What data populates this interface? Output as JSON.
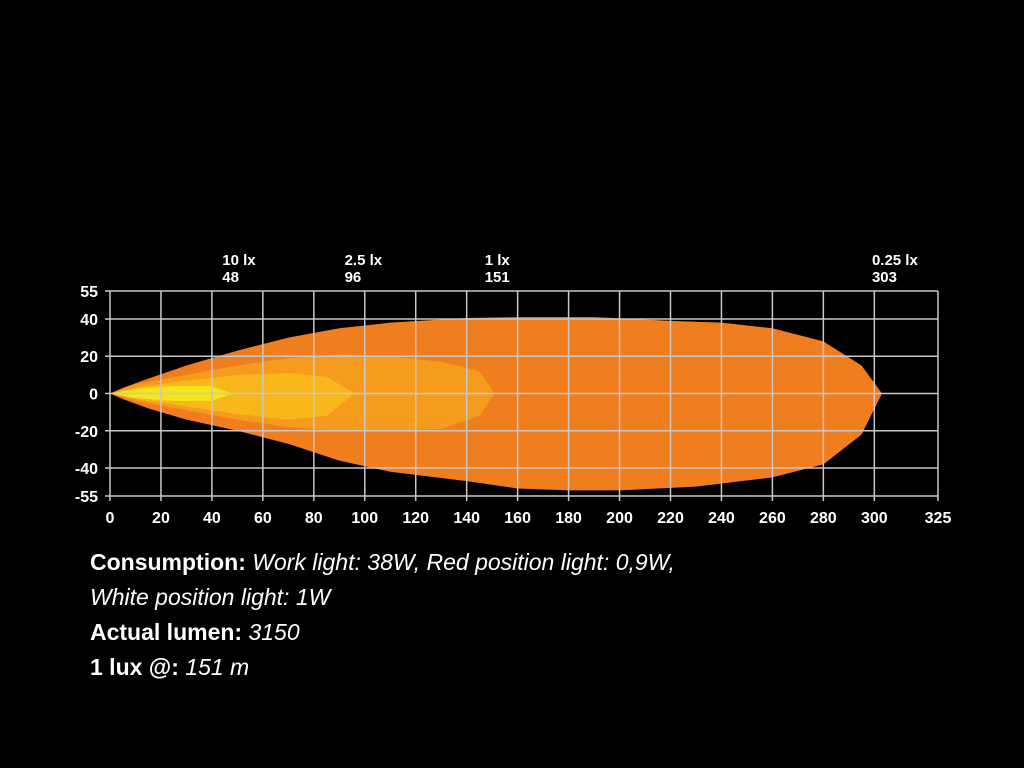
{
  "chart_data": {
    "type": "area",
    "xlim": [
      0,
      325
    ],
    "ylim": [
      -55,
      55
    ],
    "x_ticks": [
      0,
      20,
      40,
      60,
      80,
      100,
      120,
      140,
      160,
      180,
      200,
      220,
      240,
      260,
      280,
      300,
      325
    ],
    "y_ticks": [
      55,
      40,
      20,
      0,
      -20,
      -40,
      -55
    ],
    "x_tick_labels": [
      "0",
      "20",
      "40",
      "60",
      "80",
      "100",
      "120",
      "140",
      "160",
      "180",
      "200",
      "220",
      "240",
      "260",
      "280",
      "300",
      "325"
    ],
    "y_tick_labels": [
      "55",
      "40",
      "20",
      "0",
      "-20",
      "-40",
      "-55"
    ],
    "grid": true,
    "series": [
      {
        "lux_label": "0.25 lx",
        "reach_label": "303",
        "reach": 303,
        "color": "#f07d1e",
        "upper": [
          [
            0,
            0
          ],
          [
            5,
            3
          ],
          [
            15,
            8
          ],
          [
            30,
            15
          ],
          [
            50,
            23
          ],
          [
            70,
            30
          ],
          [
            90,
            35
          ],
          [
            110,
            38
          ],
          [
            140,
            40.5
          ],
          [
            160,
            41
          ],
          [
            190,
            41
          ],
          [
            220,
            39
          ],
          [
            240,
            38
          ],
          [
            260,
            35
          ],
          [
            280,
            28
          ],
          [
            295,
            15
          ],
          [
            303,
            0
          ]
        ],
        "lower": [
          [
            0,
            0
          ],
          [
            5,
            -3
          ],
          [
            15,
            -8
          ],
          [
            30,
            -14
          ],
          [
            50,
            -20
          ],
          [
            70,
            -27
          ],
          [
            90,
            -36
          ],
          [
            110,
            -42
          ],
          [
            140,
            -47
          ],
          [
            160,
            -51
          ],
          [
            180,
            -52
          ],
          [
            200,
            -52
          ],
          [
            230,
            -50
          ],
          [
            260,
            -45
          ],
          [
            280,
            -38
          ],
          [
            295,
            -22
          ],
          [
            303,
            0
          ]
        ]
      },
      {
        "lux_label": "1 lx",
        "reach_label": "151",
        "reach": 151,
        "color": "#f59b1e",
        "upper": [
          [
            0,
            0
          ],
          [
            10,
            5
          ],
          [
            30,
            10
          ],
          [
            50,
            15
          ],
          [
            70,
            19
          ],
          [
            90,
            21
          ],
          [
            110,
            20
          ],
          [
            130,
            17
          ],
          [
            145,
            12
          ],
          [
            151,
            0
          ]
        ],
        "lower": [
          [
            0,
            0
          ],
          [
            10,
            -4
          ],
          [
            30,
            -9
          ],
          [
            50,
            -14
          ],
          [
            70,
            -18
          ],
          [
            90,
            -20
          ],
          [
            110,
            -20
          ],
          [
            130,
            -19
          ],
          [
            145,
            -12
          ],
          [
            151,
            0
          ]
        ]
      },
      {
        "lux_label": "2.5 lx",
        "reach_label": "96",
        "reach": 96,
        "color": "#f8b81c",
        "upper": [
          [
            0,
            0
          ],
          [
            10,
            3
          ],
          [
            30,
            7
          ],
          [
            50,
            10
          ],
          [
            70,
            11
          ],
          [
            85,
            9
          ],
          [
            96,
            0
          ]
        ],
        "lower": [
          [
            0,
            0
          ],
          [
            10,
            -3
          ],
          [
            30,
            -7
          ],
          [
            50,
            -11
          ],
          [
            70,
            -14
          ],
          [
            85,
            -12
          ],
          [
            96,
            0
          ]
        ]
      },
      {
        "lux_label": "10 lx",
        "reach_label": "48",
        "reach": 48,
        "color": "#f6e51a",
        "upper": [
          [
            0,
            0
          ],
          [
            10,
            2.5
          ],
          [
            25,
            4
          ],
          [
            40,
            4
          ],
          [
            48,
            0
          ]
        ],
        "lower": [
          [
            0,
            0
          ],
          [
            10,
            -2.5
          ],
          [
            25,
            -4
          ],
          [
            40,
            -4
          ],
          [
            48,
            0
          ]
        ]
      }
    ]
  },
  "info": {
    "consumption_label": "Consumption:",
    "consumption_value_1": "Work light: 38W, Red position light: 0,9W,",
    "consumption_value_2": "White position light: 1W",
    "lumen_label": "Actual lumen:",
    "lumen_value": "3150",
    "lux_label": "1 lux @:",
    "lux_value": "151 m"
  }
}
